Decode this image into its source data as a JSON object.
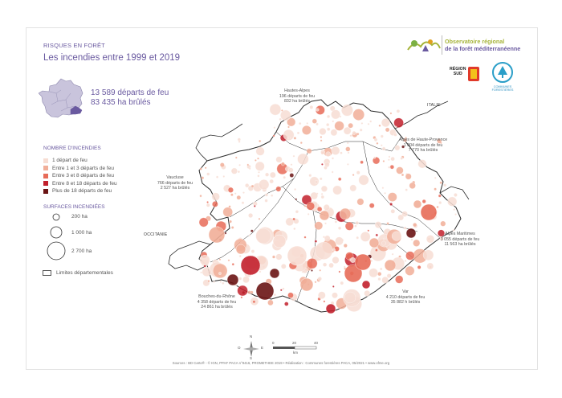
{
  "header": {
    "kicker": "RISQUES EN FORÊT",
    "title": "Les incendies entre 1999 et 2019"
  },
  "totals": {
    "departs": "13 589 départs de feu",
    "hectares": "83 435 ha brûlés"
  },
  "legend_count": {
    "title": "NOMBRE D'INCENDIES",
    "items": [
      {
        "label": "1 départ de feu",
        "color": "#f7ddd3"
      },
      {
        "label": "Entre 1 et 3 départs de feu",
        "color": "#f1ae98"
      },
      {
        "label": "Entre 3 et 8 départs de feu",
        "color": "#e76b58"
      },
      {
        "label": "Entre 8 et 18 départs de feu",
        "color": "#c2202c"
      },
      {
        "label": "Plus de 18 départs de feu",
        "color": "#6a1414"
      }
    ]
  },
  "legend_surface": {
    "title": "SURFACES INCENDIÉES",
    "items": [
      {
        "label": "200 ha"
      },
      {
        "label": "1 000 ha"
      },
      {
        "label": "2 700 ha"
      }
    ]
  },
  "legend_limits": {
    "label": "Limites départementales"
  },
  "departments": {
    "hautes_alpes": {
      "name": "Hautes-Alpes",
      "departs": "196 départs de feu",
      "ha": "832 ha brûlés"
    },
    "alpes_hp": {
      "name": "Alpes de Haute-Provence",
      "departs": "1 004 départs de feu",
      "ha": "7 770 ha brûlés"
    },
    "vaucluse": {
      "name": "Vaucluse",
      "departs": "766 départs de feu",
      "ha": "2 527 ha brûlés"
    },
    "alpes_maritimes": {
      "name": "Alpes Maritimes",
      "departs": "3 055 départs de feu",
      "ha": "11 563 ha brûlés"
    },
    "bouches_du_rhone": {
      "name": "Bouches-du-Rhône",
      "departs": "4 358 départs de feu",
      "ha": "24 861 ha brûlés"
    },
    "var": {
      "name": "Var",
      "departs": "4 210 départs de feu",
      "ha": "35 882 h brûlés"
    }
  },
  "countries": {
    "italy": "ITALIE",
    "occitanie": "OCCITANIE"
  },
  "compass": {
    "n": "N",
    "s": "S",
    "o": "O",
    "e": "E"
  },
  "scale": {
    "t0": "0",
    "t1": "20",
    "t2": "40",
    "unit": "km"
  },
  "logos": {
    "observatoire_line1": "Observatoire régional",
    "observatoire_line2": "de la forêt méditerranéenne",
    "region_sud": "RÉGION\nSUD",
    "communes": "COMMUNES FORESTIÈRES"
  },
  "footer": "Sources : BD Carto® - © IGN, PPAF PACA n°9416, PROMETHEE 2019 • Réalisation : Communes forestières PACA, 05/2021 • www.ofme.org",
  "colors": {
    "accent": "#6a5aa0",
    "border": "#2b2b2b",
    "inset_region": "#6a5aa0"
  }
}
